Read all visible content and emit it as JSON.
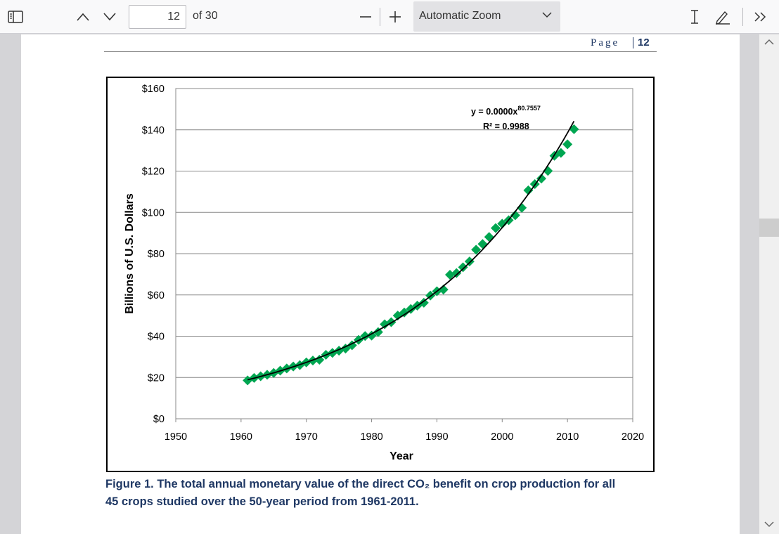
{
  "toolbar": {
    "sidebar_icon": "sidebar-toggle-icon",
    "page_number": "12",
    "page_count_label": "of 30",
    "zoom_value": "Automatic Zoom",
    "text_tool_icon": "text-cursor-icon",
    "draw_tool_icon": "pen-icon",
    "more_icon": "double-chevron-right-icon"
  },
  "document": {
    "header_label": "Page",
    "header_page": "12",
    "caption_line1": "Figure 1. The total annual monetary value of the direct CO₂ benefit on crop production for all",
    "caption_line2": "45 crops studied over the 50-year period from 1961-2011."
  },
  "colors": {
    "marker": "#00a651",
    "caption": "#1f3864",
    "trendline": "#000000"
  },
  "chart_data": {
    "type": "scatter",
    "xlabel": "Year",
    "ylabel": "Billions of U.S. Dollars",
    "xlim": [
      1950,
      2020
    ],
    "ylim": [
      0,
      160
    ],
    "x_ticks": [
      "1950",
      "1960",
      "1970",
      "1980",
      "1990",
      "2000",
      "2010",
      "2020"
    ],
    "y_ticks": [
      "$0",
      "$20",
      "$40",
      "$60",
      "$80",
      "$100",
      "$120",
      "$140",
      "$160"
    ],
    "grid": "horizontal",
    "trendline": {
      "type": "power",
      "equation": "y = 0.0000x",
      "exponent": "80.7557",
      "r_squared": "R² = 0.9988"
    },
    "series": [
      {
        "x": [
          1961,
          1962,
          1963,
          1964,
          1965,
          1966,
          1967,
          1968,
          1969,
          1970,
          1971,
          1972,
          1973,
          1974,
          1975,
          1976,
          1977,
          1978,
          1979,
          1980,
          1981,
          1982,
          1983,
          1984,
          1985,
          1986,
          1987,
          1988,
          1989,
          1990,
          1991,
          1992,
          1993,
          1994,
          1995,
          1996,
          1997,
          1998,
          1999,
          2000,
          2001,
          2002,
          2003,
          2004,
          2005,
          2006,
          2007,
          2008,
          2009,
          2010,
          2011
        ],
        "y": [
          18.6,
          19.8,
          20.6,
          21.3,
          22.2,
          23.3,
          24.4,
          25.3,
          26.0,
          27.3,
          28.2,
          28.6,
          31.0,
          31.9,
          33.0,
          34.0,
          35.6,
          38.2,
          40.1,
          40.3,
          42.0,
          45.8,
          46.8,
          50.0,
          51.5,
          53.2,
          54.8,
          56.2,
          59.7,
          61.8,
          62.6,
          69.8,
          70.6,
          73.4,
          76.2,
          81.9,
          84.7,
          88.1,
          92.4,
          94.5,
          96.2,
          98.6,
          102.2,
          110.7,
          113.7,
          116.4,
          120.1,
          127.4,
          128.8,
          133.0,
          140.3
        ]
      }
    ]
  }
}
